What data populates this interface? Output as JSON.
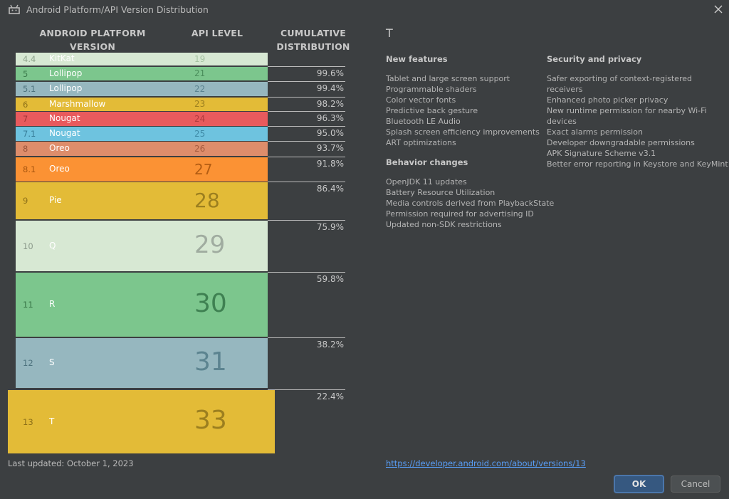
{
  "window": {
    "title": "Android Platform/API Version Distribution",
    "app_icon": "android-icon",
    "close_icon": "close-icon"
  },
  "table": {
    "headers": {
      "version": "ANDROID PLATFORM VERSION",
      "api": "API LEVEL",
      "cumulative": "CUMULATIVE DISTRIBUTION"
    },
    "rows": [
      {
        "version": "4.4",
        "name": "KitKat",
        "api": "19",
        "cumulative": "",
        "color": "#d7e8d3"
      },
      {
        "version": "5",
        "name": "Lollipop",
        "api": "21",
        "cumulative": "99.6%",
        "color": "#7cc68d"
      },
      {
        "version": "5.1",
        "name": "Lollipop",
        "api": "22",
        "cumulative": "99.4%",
        "color": "#96b7bf"
      },
      {
        "version": "6",
        "name": "Marshmallow",
        "api": "23",
        "cumulative": "98.2%",
        "color": "#e3bb37"
      },
      {
        "version": "7",
        "name": "Nougat",
        "api": "24",
        "cumulative": "96.3%",
        "color": "#e85a5d"
      },
      {
        "version": "7.1",
        "name": "Nougat",
        "api": "25",
        "cumulative": "95.0%",
        "color": "#6ec3df"
      },
      {
        "version": "8",
        "name": "Oreo",
        "api": "26",
        "cumulative": "93.7%",
        "color": "#de8d6b"
      },
      {
        "version": "8.1",
        "name": "Oreo",
        "api": "27",
        "cumulative": "91.8%",
        "color": "#fb9234"
      },
      {
        "version": "9",
        "name": "Pie",
        "api": "28",
        "cumulative": "86.4%",
        "color": "#e3bb37"
      },
      {
        "version": "10",
        "name": "Q",
        "api": "29",
        "cumulative": "75.9%",
        "color": "#d7e8d3"
      },
      {
        "version": "11",
        "name": "R",
        "api": "30",
        "cumulative": "59.8%",
        "color": "#7cc68d"
      },
      {
        "version": "12",
        "name": "S",
        "api": "31",
        "cumulative": "38.2%",
        "color": "#96b7bf"
      },
      {
        "version": "13",
        "name": "T",
        "api": "33",
        "cumulative": "22.4%",
        "color": "#e3bb37",
        "selected": true
      }
    ]
  },
  "details": {
    "title": "T",
    "new_features": {
      "heading": "New features",
      "items": [
        "Tablet and large screen support",
        "Programmable shaders",
        "Color vector fonts",
        "Predictive back gesture",
        "Bluetooth LE Audio",
        "Splash screen efficiency improvements",
        "ART optimizations"
      ]
    },
    "behavior_changes": {
      "heading": "Behavior changes",
      "items": [
        "OpenJDK 11 updates",
        "Battery Resource Utilization",
        "Media controls derived from PlaybackState",
        "Permission required for advertising ID",
        "Updated non-SDK restrictions"
      ]
    },
    "security": {
      "heading": "Security and privacy",
      "items": [
        "Safer exporting of context-registered receivers",
        "Enhanced photo picker privacy",
        "New runtime permission for nearby Wi-Fi devices",
        "Exact alarms permission",
        "Developer downgradable permissions",
        "APK Signature Scheme v3.1",
        "Better error reporting in Keystore and KeyMint"
      ]
    },
    "link": "https://developer.android.com/about/versions/13"
  },
  "footer": {
    "last_updated": "Last updated: October 1, 2023",
    "ok_label": "OK",
    "cancel_label": "Cancel"
  }
}
